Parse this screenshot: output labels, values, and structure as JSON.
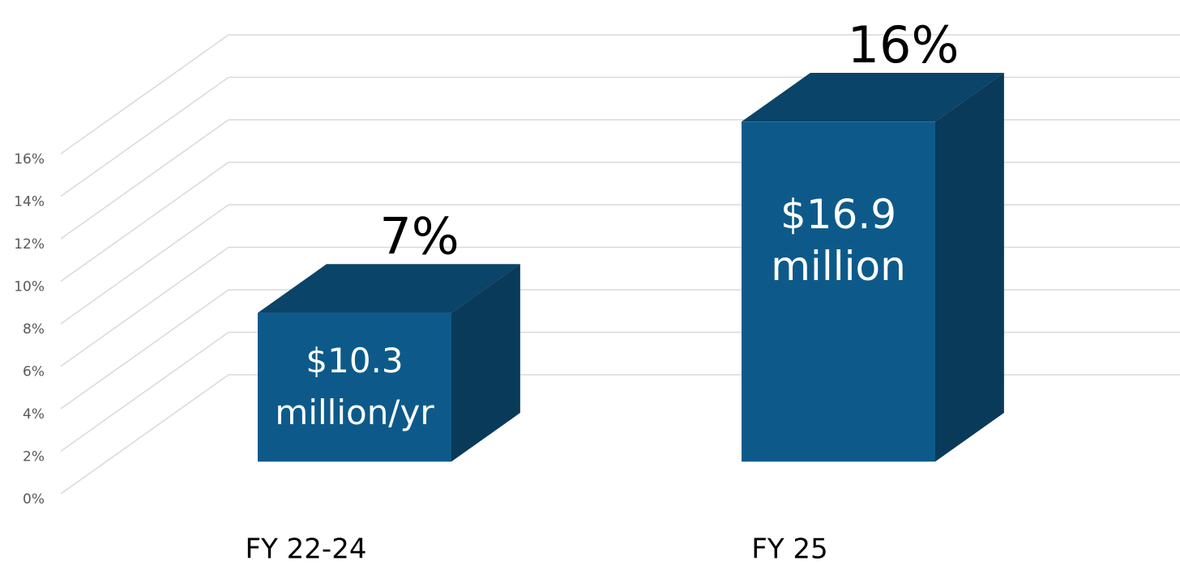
{
  "chart_data": {
    "type": "bar3d",
    "categories": [
      "FY 22-24",
      "FY 25"
    ],
    "values": [
      7,
      16
    ],
    "value_labels": [
      "7%",
      "16%"
    ],
    "inner_labels": [
      [
        "$10.3",
        "million/yr"
      ],
      [
        "$16.9",
        "million"
      ]
    ],
    "color": "#0d5a8a",
    "ylim": [
      0,
      16
    ],
    "yticks": [
      {
        "value": 0,
        "label": "0%"
      },
      {
        "value": 2,
        "label": "2%"
      },
      {
        "value": 4,
        "label": "4%"
      },
      {
        "value": 6,
        "label": "6%"
      },
      {
        "value": 8,
        "label": "8%"
      },
      {
        "value": 10,
        "label": "10%"
      },
      {
        "value": 12,
        "label": "12%"
      },
      {
        "value": 14,
        "label": "14%"
      },
      {
        "value": 16,
        "label": "16%"
      }
    ],
    "grid": true
  }
}
